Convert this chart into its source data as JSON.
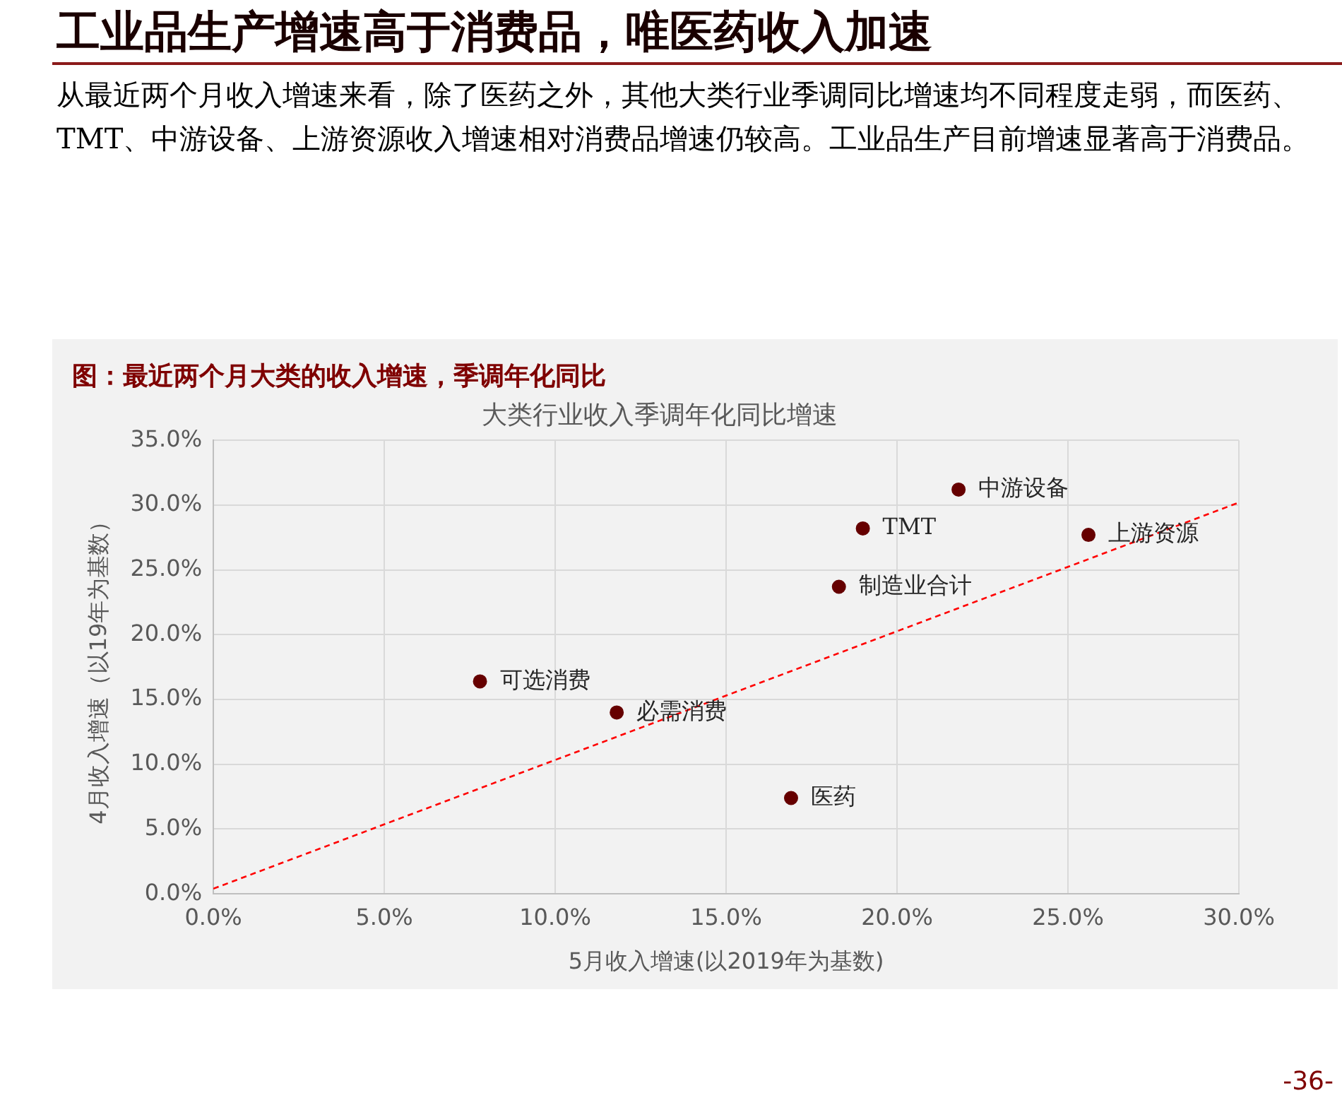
{
  "chart_data": {
    "type": "scatter",
    "title": "大类行业收入季调年化同比增速",
    "xlabel": "5月收入增速(以2019年为基数)",
    "ylabel": "4月收入增速（以19年为基数）",
    "annotations": [
      "工业品生产增速高于消费品，唯医药收入加速",
      "从最近两个月收入增速来看，除了医药之外，其他大类行业季调同比增速均不同程度走弱，而医药、TMT、中游设备、上游资源收入增速相对消费品增速仍较高。工业品生产目前增速显著高于消费品。",
      "图：最近两个月大类的收入增速，季调年化同比",
      "-36-"
    ],
    "series": [
      {
        "name": "可选消费",
        "color": "#660000",
        "x": [
          7.8
        ],
        "values": [
          16.4
        ]
      },
      {
        "name": "必需消费",
        "color": "#660000",
        "x": [
          11.8
        ],
        "values": [
          14.0
        ]
      },
      {
        "name": "医药",
        "color": "#660000",
        "x": [
          16.9
        ],
        "values": [
          7.4
        ]
      },
      {
        "name": "制造业合计",
        "color": "#660000",
        "x": [
          18.3
        ],
        "values": [
          23.7
        ]
      },
      {
        "name": "TMT",
        "color": "#660000",
        "x": [
          19.0
        ],
        "values": [
          28.2
        ]
      },
      {
        "name": "中游设备",
        "color": "#660000",
        "x": [
          21.8
        ],
        "values": [
          31.2
        ]
      },
      {
        "name": "上游资源",
        "color": "#660000",
        "x": [
          25.6
        ],
        "values": [
          27.7
        ]
      },
      {
        "type": "line",
        "color": "#ff0000",
        "x": [
          0,
          30
        ],
        "values": [
          0.4,
          30.2
        ],
        "line_style": "dashed",
        "marker": "none"
      }
    ],
    "xlim": [
      0,
      30
    ],
    "ylim": [
      0,
      35
    ],
    "xticks": [
      {
        "value": 0,
        "label": "0.0%"
      },
      {
        "value": 5,
        "label": "5.0%"
      },
      {
        "value": 10,
        "label": "10.0%"
      },
      {
        "value": 15,
        "label": "15.0%"
      },
      {
        "value": 20,
        "label": "20.0%"
      },
      {
        "value": 25,
        "label": "25.0%"
      },
      {
        "value": 30,
        "label": "30.0%"
      }
    ],
    "yticks": [
      {
        "value": 0,
        "label": "0.0%"
      },
      {
        "value": 5,
        "label": "5.0%"
      },
      {
        "value": 10,
        "label": "10.0%"
      },
      {
        "value": 15,
        "label": "15.0%"
      },
      {
        "value": 20,
        "label": "20.0%"
      },
      {
        "value": 25,
        "label": "25.0%"
      },
      {
        "value": 30,
        "label": "30.0%"
      },
      {
        "value": 35,
        "label": "35.0%"
      }
    ],
    "grid": true,
    "legend": false,
    "marker": "circle"
  }
}
